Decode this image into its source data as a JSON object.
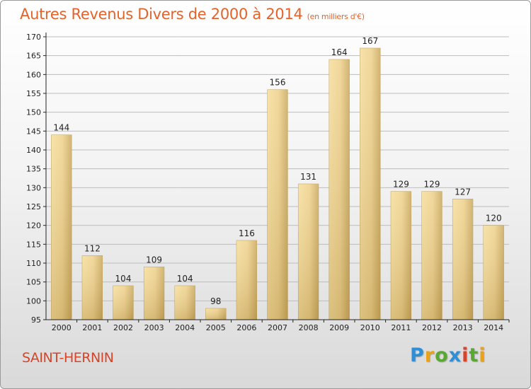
{
  "header": {
    "title": "Autres Revenus Divers de 2000 à 2014",
    "unit": "(en milliers d'€)"
  },
  "footer": {
    "location": "SAINT-HERNIN",
    "brand": [
      "P",
      "r",
      "o",
      "x",
      "i",
      "t",
      "i"
    ]
  },
  "colors": {
    "title": "#e4632b",
    "bar_light": "#f6dd9a",
    "bar_dark": "#c9a85c",
    "grid": "#bdbdbd",
    "axis": "#222222"
  },
  "chart_data": {
    "type": "bar",
    "title": "Autres Revenus Divers de 2000 à 2014",
    "subtitle": "(en milliers d'€)",
    "xlabel": "",
    "ylabel": "",
    "ylim": [
      95,
      170
    ],
    "yticks": [
      95,
      100,
      105,
      110,
      115,
      120,
      125,
      130,
      135,
      140,
      145,
      150,
      155,
      160,
      165,
      170
    ],
    "grid": true,
    "categories": [
      "2000",
      "2001",
      "2002",
      "2003",
      "2004",
      "2005",
      "2006",
      "2007",
      "2008",
      "2009",
      "2010",
      "2011",
      "2012",
      "2013",
      "2014"
    ],
    "values": [
      144,
      112,
      104,
      109,
      104,
      98,
      116,
      156,
      131,
      164,
      167,
      129,
      129,
      127,
      120
    ]
  }
}
